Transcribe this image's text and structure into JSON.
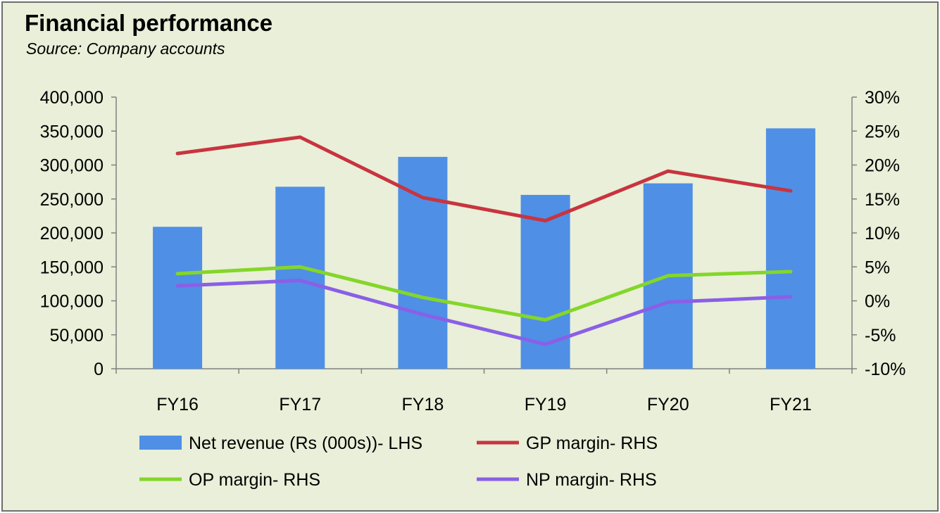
{
  "chart_data": {
    "type": "bar",
    "title": "Financial performance",
    "subtitle": "Source: Company accounts",
    "categories": [
      "FY16",
      "FY17",
      "FY18",
      "FY19",
      "FY20",
      "FY21"
    ],
    "left_axis": {
      "range": [
        0,
        400000
      ],
      "ticks": [
        0,
        50000,
        100000,
        150000,
        200000,
        250000,
        300000,
        350000,
        400000
      ],
      "tick_labels": [
        "0",
        "50,000",
        "100,000",
        "150,000",
        "200,000",
        "250,000",
        "300,000",
        "350,000",
        "400,000"
      ]
    },
    "right_axis": {
      "range": [
        -10,
        30
      ],
      "unit": "%",
      "ticks": [
        -10,
        -5,
        0,
        5,
        10,
        15,
        20,
        25,
        30
      ],
      "tick_labels": [
        "-10%",
        "-5%",
        "0%",
        "5%",
        "10%",
        "15%",
        "20%",
        "25%",
        "30%"
      ]
    },
    "series": [
      {
        "name": "Net revenue (Rs (000s))- LHS",
        "type": "bar",
        "axis": "left",
        "color": "#4f8fe6",
        "values": [
          209000,
          268000,
          312000,
          256000,
          273000,
          354000
        ]
      },
      {
        "name": "GP margin- RHS",
        "type": "line",
        "axis": "right",
        "color": "#c8343f",
        "values": [
          21.7,
          24.1,
          15.2,
          11.8,
          19.1,
          16.2
        ]
      },
      {
        "name": "OP margin- RHS",
        "type": "line",
        "axis": "right",
        "color": "#84d629",
        "values": [
          4.0,
          5.0,
          0.5,
          -2.8,
          3.7,
          4.3
        ]
      },
      {
        "name": "NP margin- RHS",
        "type": "line",
        "axis": "right",
        "color": "#8a5fe6",
        "values": [
          2.2,
          3.0,
          -2.0,
          -6.4,
          -0.2,
          0.6
        ]
      }
    ],
    "legend_position": "bottom",
    "grid": false
  }
}
